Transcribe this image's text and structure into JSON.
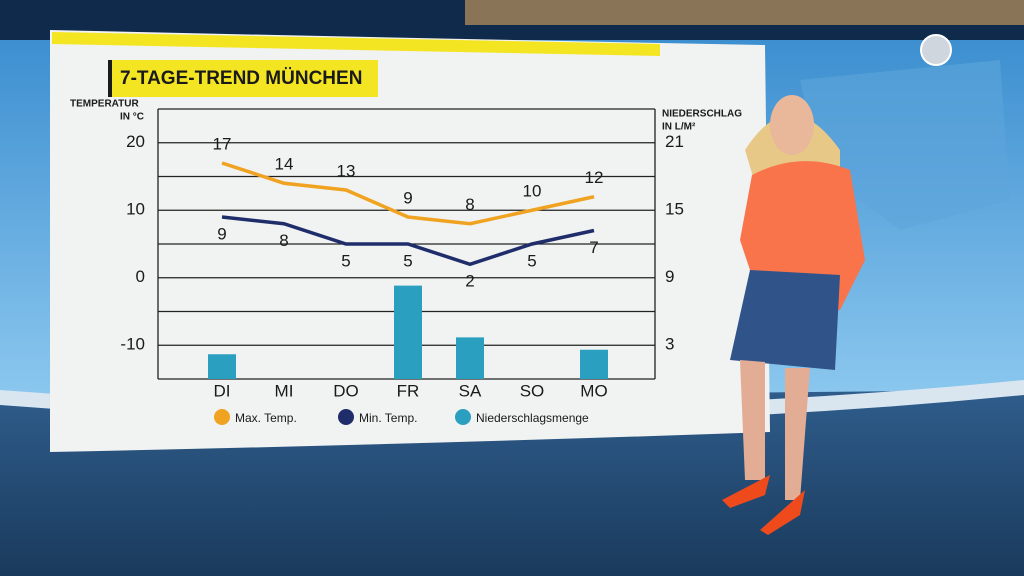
{
  "chart_data": {
    "type": "line",
    "title": "7-TAGE-TREND MÜNCHEN",
    "y_label": [
      "TEMPERATUR",
      "IN °C"
    ],
    "y2_label": [
      "NIEDERSCHLAG",
      "IN L/M²"
    ],
    "categories": [
      "DI",
      "MI",
      "DO",
      "FR",
      "SA",
      "SO",
      "MO"
    ],
    "series": [
      {
        "name": "Max. Temp.",
        "color": "#f0a321",
        "values": [
          17,
          14,
          13,
          9,
          8,
          10,
          12
        ],
        "label_side": "above"
      },
      {
        "name": "Min. Temp.",
        "color": "#1f2d6b",
        "values": [
          9,
          8,
          5,
          5,
          2,
          5,
          7
        ],
        "label_side": "below"
      },
      {
        "name": "Niederschlagsmenge",
        "color": "#2a9fc0",
        "values": [
          2.2,
          0,
          0,
          8.3,
          3.7,
          0,
          2.6
        ],
        "axis": "y2",
        "type": "bar"
      }
    ],
    "ylim": [
      -15,
      25
    ],
    "yticks": [
      -10,
      0,
      10,
      20
    ],
    "minor_yticks": [
      -15,
      -5,
      5,
      15,
      25
    ],
    "y2lim": [
      0,
      24
    ],
    "y2ticks": [
      3,
      9,
      15,
      21
    ],
    "grid": true
  }
}
